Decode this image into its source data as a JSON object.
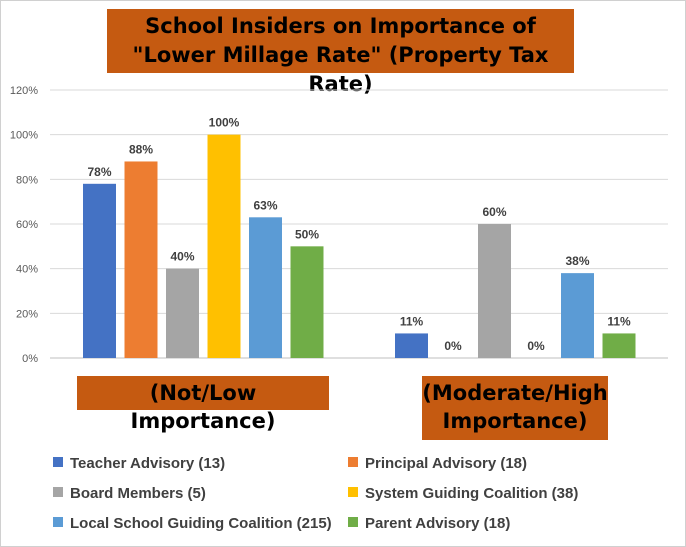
{
  "chart_data": {
    "type": "bar",
    "title_lines": [
      "School Insiders on Importance of",
      "\"Lower Millage Rate\" (Property Tax Rate)"
    ],
    "categories": [
      "(Not/Low Importance)",
      "(Moderate/High Importance)"
    ],
    "category_lines": [
      [
        "(Not/Low Importance)"
      ],
      [
        "(Moderate/High",
        "Importance)"
      ]
    ],
    "ylim": [
      0,
      120
    ],
    "yticks": [
      "0%",
      "20%",
      "40%",
      "60%",
      "80%",
      "100%",
      "120%"
    ],
    "grid": true,
    "legend_position": "bottom",
    "series": [
      {
        "name": "Teacher Advisory (13)",
        "color": "#4472c4",
        "values": [
          78,
          11
        ],
        "labels": [
          "78%",
          "11%"
        ]
      },
      {
        "name": "Principal Advisory (18)",
        "color": "#ed7d31",
        "values": [
          88,
          0
        ],
        "labels": [
          "88%",
          "0%"
        ]
      },
      {
        "name": "Board Members (5)",
        "color": "#a5a5a5",
        "values": [
          40,
          60
        ],
        "labels": [
          "40%",
          "60%"
        ]
      },
      {
        "name": "System Guiding Coalition (38)",
        "color": "#ffc000",
        "values": [
          100,
          0
        ],
        "labels": [
          "100%",
          "0%"
        ]
      },
      {
        "name": "Local School Guiding Coalition (215)",
        "color": "#5b9bd5",
        "values": [
          63,
          38
        ],
        "labels": [
          "63%",
          "38%"
        ]
      },
      {
        "name": "Parent Advisory (18)",
        "color": "#70ad47",
        "values": [
          50,
          11
        ],
        "labels": [
          "50%",
          "11%"
        ]
      }
    ]
  }
}
